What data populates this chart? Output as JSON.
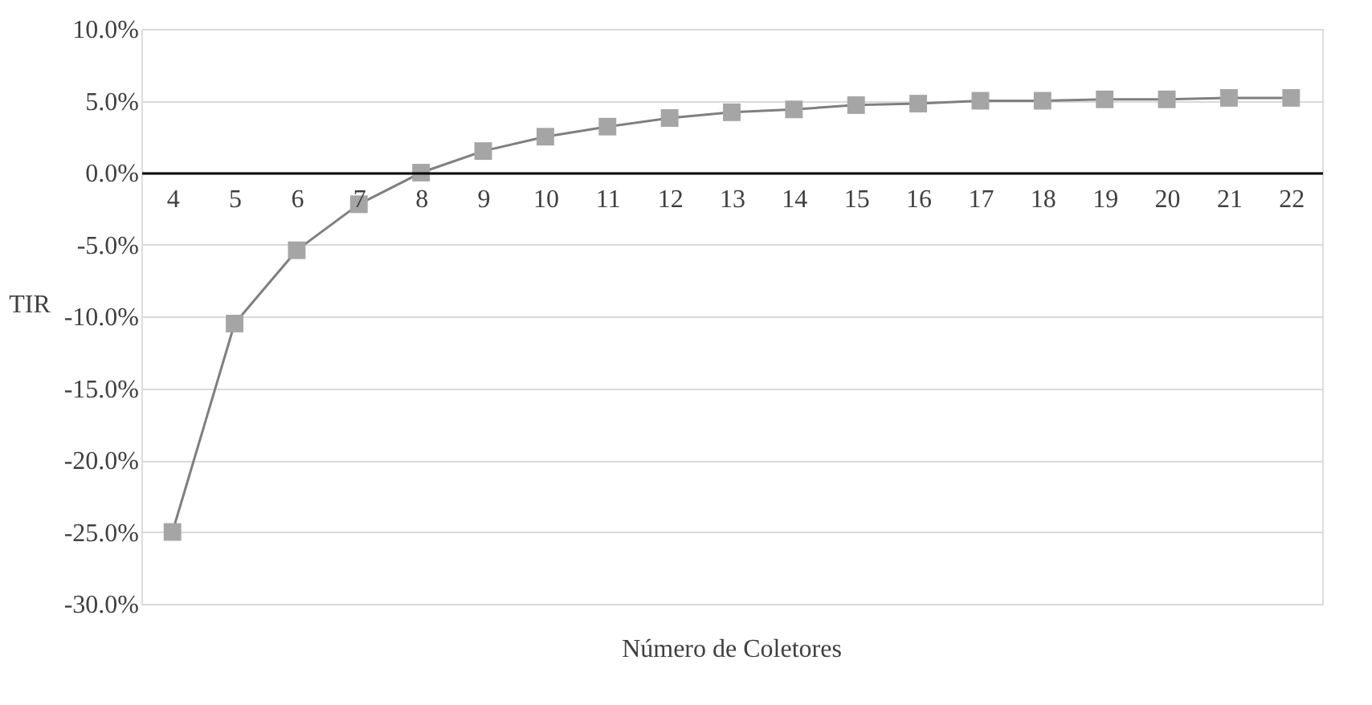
{
  "chart_data": {
    "type": "line",
    "categories": [
      "4",
      "5",
      "6",
      "7",
      "8",
      "9",
      "10",
      "11",
      "12",
      "13",
      "14",
      "15",
      "16",
      "17",
      "18",
      "19",
      "20",
      "21",
      "22"
    ],
    "series": [
      {
        "color": "#a5a5a5",
        "values": [
          -25.0,
          -10.5,
          -5.4,
          -2.2,
          0.0,
          1.5,
          2.5,
          3.2,
          3.8,
          4.2,
          4.4,
          4.7,
          4.8,
          5.0,
          5.0,
          5.1,
          5.1,
          5.2,
          5.2
        ]
      }
    ],
    "ylim": [
      -30,
      10
    ],
    "yticks": [
      {
        "value": -30,
        "label": "-30.0%"
      },
      {
        "value": -25,
        "label": "-25.0%"
      },
      {
        "value": -20,
        "label": "-20.0%"
      },
      {
        "value": -15,
        "label": "-15.0%"
      },
      {
        "value": -10,
        "label": "-10.0%"
      },
      {
        "value": -5,
        "label": "-5.0%"
      },
      {
        "value": 0,
        "label": "0.0%"
      },
      {
        "value": 5,
        "label": "5.0%"
      },
      {
        "value": 10,
        "label": "10.0%"
      }
    ],
    "xlabel": "Número de Coletores",
    "ylabel": "TIR",
    "grid": "y",
    "marker": "square",
    "line_style": "solid"
  }
}
